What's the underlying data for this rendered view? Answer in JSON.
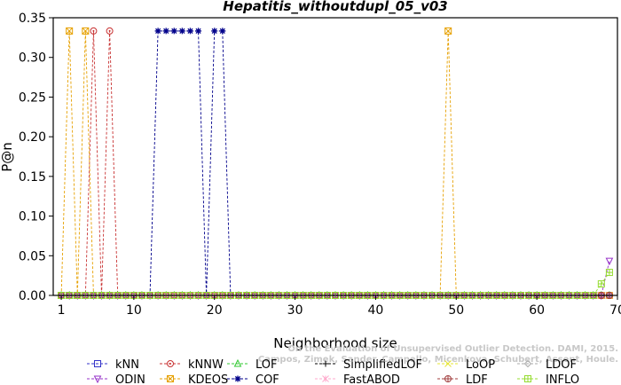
{
  "chart_data": {
    "type": "line",
    "title": "Hepatitis_withoutdupl_05_v03",
    "xlabel": "Neighborhood size",
    "ylabel": "P@n",
    "xlim": [
      0,
      70
    ],
    "ylim": [
      0,
      0.35
    ],
    "xticks": [
      1,
      10,
      20,
      30,
      40,
      50,
      60,
      70
    ],
    "yticks": [
      0.0,
      0.05,
      0.1,
      0.15,
      0.2,
      0.25,
      0.3,
      0.35
    ],
    "ytick_labels": [
      "0.00",
      "0.05",
      "0.10",
      "0.15",
      "0.20",
      "0.25",
      "0.30",
      "0.35"
    ],
    "grid": false,
    "legend_position": "bottom",
    "watermark": "Campos, Zimek, Sander, Campello, Micenkova, Schubert, Assent, Houle. On the Evaluation of Unsupervised Outlier Detection. DAMI, 2015.",
    "x_range": [
      1,
      69
    ],
    "default_value": 0,
    "series": [
      {
        "name": "kNN",
        "color": "#3232c8",
        "marker": "square",
        "overrides": []
      },
      {
        "name": "kNNW",
        "color": "#c83232",
        "marker": "circle",
        "overrides": [
          [
            5,
            0.3333
          ],
          [
            7,
            0.3333
          ]
        ]
      },
      {
        "name": "LOF",
        "color": "#32c832",
        "marker": "triangle-up",
        "overrides": []
      },
      {
        "name": "SimplifiedLOF",
        "color": "#000000",
        "marker": "plus",
        "overrides": []
      },
      {
        "name": "LoOP",
        "color": "#e6e632",
        "marker": "x",
        "overrides": []
      },
      {
        "name": "LDOF",
        "color": "#aaaaaa",
        "marker": "diamond",
        "overrides": []
      },
      {
        "name": "ODIN",
        "color": "#9632c8",
        "marker": "triangle-down",
        "overrides": [
          [
            69,
            0.0435
          ]
        ]
      },
      {
        "name": "KDEOS",
        "color": "#e6a000",
        "marker": "square-x",
        "overrides": [
          [
            2,
            0.3333
          ],
          [
            4,
            0.3333
          ],
          [
            49,
            0.3333
          ]
        ]
      },
      {
        "name": "COF",
        "color": "#00008b",
        "marker": "star",
        "overrides": [
          [
            13,
            0.3333
          ],
          [
            14,
            0.3333
          ],
          [
            15,
            0.3333
          ],
          [
            16,
            0.3333
          ],
          [
            17,
            0.3333
          ],
          [
            18,
            0.3333
          ],
          [
            20,
            0.3333
          ],
          [
            21,
            0.3333
          ]
        ]
      },
      {
        "name": "FastABOD",
        "color": "#ffaacc",
        "marker": "asterisk",
        "overrides": []
      },
      {
        "name": "LDF",
        "color": "#a03c3c",
        "marker": "circle-plus",
        "overrides": []
      },
      {
        "name": "INFLO",
        "color": "#96dc32",
        "marker": "square-cross",
        "overrides": [
          [
            68,
            0.0145
          ],
          [
            69,
            0.029
          ]
        ]
      }
    ]
  }
}
